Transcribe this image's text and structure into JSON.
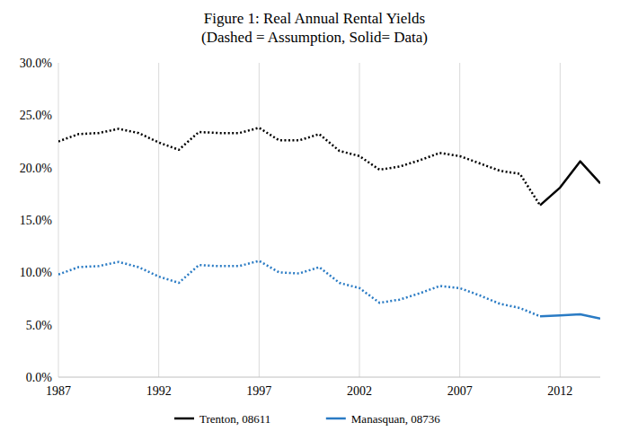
{
  "chart_data": {
    "type": "line",
    "title": "Figure 1:  Real Annual Rental Yields",
    "subtitle": "(Dashed = Assumption, Solid= Data)",
    "x": [
      1987,
      1988,
      1989,
      1990,
      1991,
      1992,
      1993,
      1994,
      1995,
      1996,
      1997,
      1998,
      1999,
      2000,
      2001,
      2002,
      2003,
      2004,
      2005,
      2006,
      2007,
      2008,
      2009,
      2010,
      2011,
      2012,
      2013,
      2014
    ],
    "series": [
      {
        "color": "#000000",
        "line_style": "dotted",
        "values": [
          22.5,
          23.2,
          23.3,
          23.7,
          23.3,
          22.4,
          21.7,
          23.4,
          23.3,
          23.3,
          23.8,
          22.6,
          22.6,
          23.2,
          21.6,
          21.1,
          19.8,
          20.1,
          20.7,
          21.4,
          21.1,
          20.4,
          19.7,
          19.4,
          16.4,
          null,
          null,
          null
        ]
      },
      {
        "name": "Trenton, 08611",
        "color": "#000000",
        "line_style": "solid",
        "values": [
          null,
          null,
          null,
          null,
          null,
          null,
          null,
          null,
          null,
          null,
          null,
          null,
          null,
          null,
          null,
          null,
          null,
          null,
          null,
          null,
          null,
          null,
          null,
          null,
          16.4,
          18.1,
          20.6,
          18.5
        ]
      },
      {
        "color": "#2a7bc4",
        "line_style": "dotted",
        "values": [
          9.8,
          10.5,
          10.6,
          11.0,
          10.5,
          9.6,
          9.0,
          10.7,
          10.6,
          10.6,
          11.1,
          10.0,
          9.9,
          10.5,
          9.0,
          8.5,
          7.1,
          7.4,
          8.0,
          8.7,
          8.5,
          7.8,
          7.0,
          6.6,
          5.8,
          null,
          null,
          null
        ]
      },
      {
        "name": "Manasquan, 08736",
        "color": "#2a7bc4",
        "line_style": "solid",
        "values": [
          null,
          null,
          null,
          null,
          null,
          null,
          null,
          null,
          null,
          null,
          null,
          null,
          null,
          null,
          null,
          null,
          null,
          null,
          null,
          null,
          null,
          null,
          null,
          null,
          5.8,
          5.9,
          6.0,
          5.6
        ]
      }
    ],
    "xlim": [
      1987,
      2014
    ],
    "xticks": [
      1987,
      1992,
      1997,
      2002,
      2007,
      2012
    ],
    "ylim": [
      0,
      30
    ],
    "yticks": [
      {
        "value": 0,
        "label": "0.0%"
      },
      {
        "value": 5,
        "label": "5.0%"
      },
      {
        "value": 10,
        "label": "10.0%"
      },
      {
        "value": 15,
        "label": "15.0%"
      },
      {
        "value": 20,
        "label": "20.0%"
      },
      {
        "value": 25,
        "label": "25.0%"
      },
      {
        "value": 30,
        "label": "30.0%"
      }
    ],
    "grid": "x",
    "legend": "bottom"
  }
}
